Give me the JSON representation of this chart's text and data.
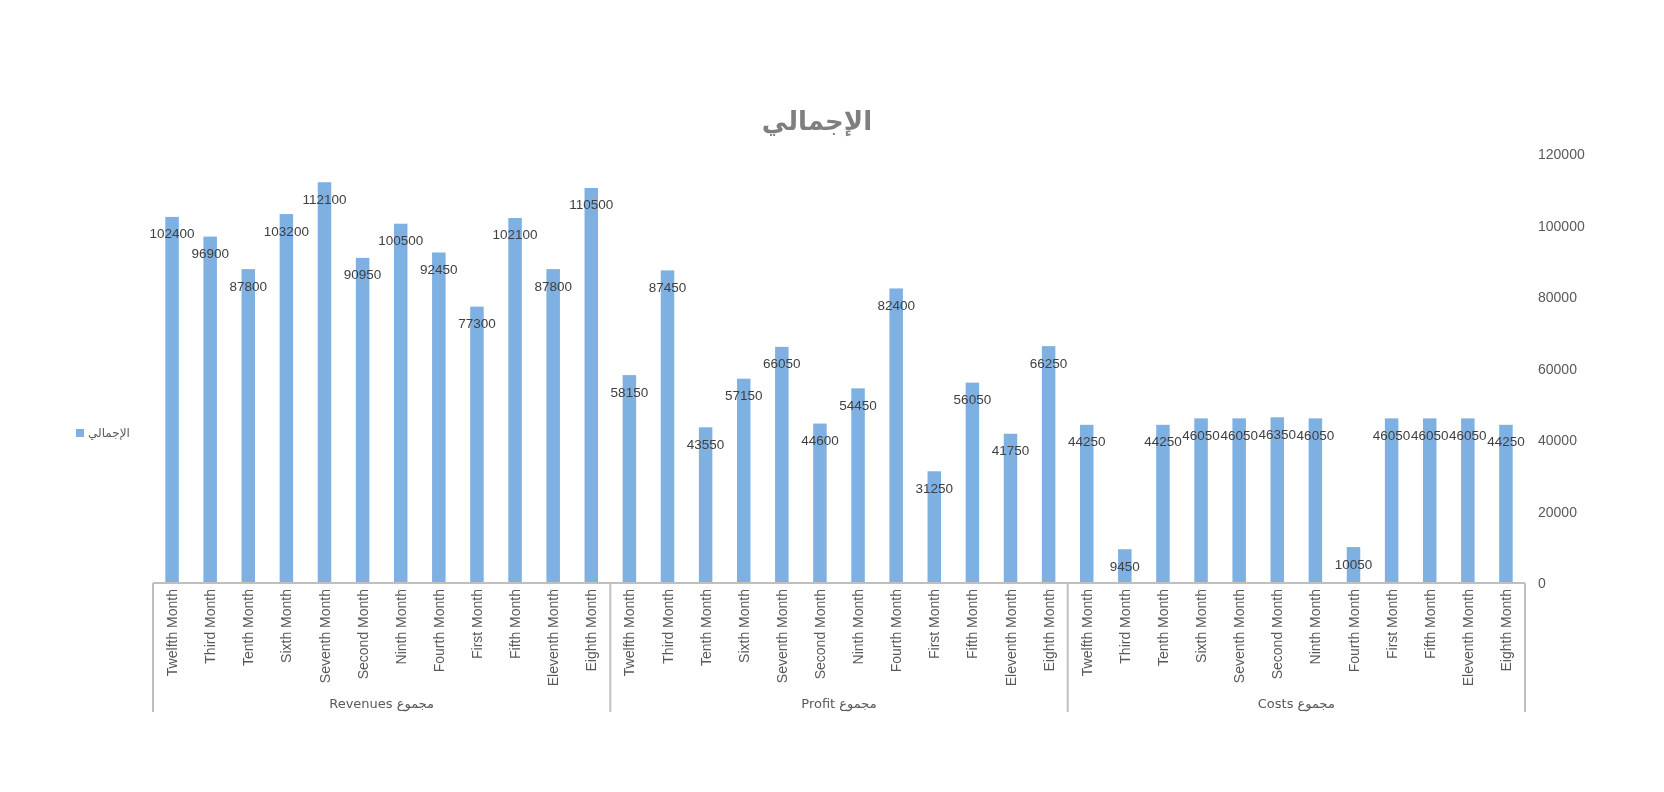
{
  "chart_data": {
    "type": "bar",
    "title": "الإجمالي",
    "categories": [
      "Twelfth Month",
      "Third Month",
      "Tenth Month",
      "Sixth Month",
      "Seventh Month",
      "Second Month",
      "Ninth Month",
      "Fourth Month",
      "First Month",
      "Fifth Month",
      "Eleventh Month",
      "Eighth Month",
      "Twelfth Month",
      "Third Month",
      "Tenth Month",
      "Sixth Month",
      "Seventh Month",
      "Second Month",
      "Ninth Month",
      "Fourth Month",
      "First Month",
      "Fifth Month",
      "Eleventh Month",
      "Eighth Month",
      "Twelfth Month",
      "Third Month",
      "Tenth Month",
      "Sixth Month",
      "Seventh Month",
      "Second Month",
      "Ninth Month",
      "Fourth Month",
      "First Month",
      "Fifth Month",
      "Eleventh Month",
      "Eighth Month"
    ],
    "series": [
      {
        "name": "الإجمالي",
        "color": "#7eb0e1",
        "values": [
          102400,
          96900,
          87800,
          103200,
          112100,
          90950,
          100500,
          92450,
          77300,
          102100,
          87800,
          110500,
          58150,
          87450,
          43550,
          57150,
          66050,
          44600,
          54450,
          82400,
          31250,
          56050,
          41750,
          66250,
          44250,
          9450,
          44250,
          46050,
          46050,
          46350,
          46050,
          10050,
          46050,
          46050,
          46050,
          44250
        ]
      }
    ],
    "ylim": [
      0,
      120000
    ],
    "yticks": [
      0,
      20000,
      40000,
      60000,
      80000,
      100000,
      120000
    ],
    "data_labels": true,
    "legend": "left",
    "annotations": [
      "مجموع Revenues",
      "مجموع Profit",
      "مجموع Costs"
    ]
  }
}
